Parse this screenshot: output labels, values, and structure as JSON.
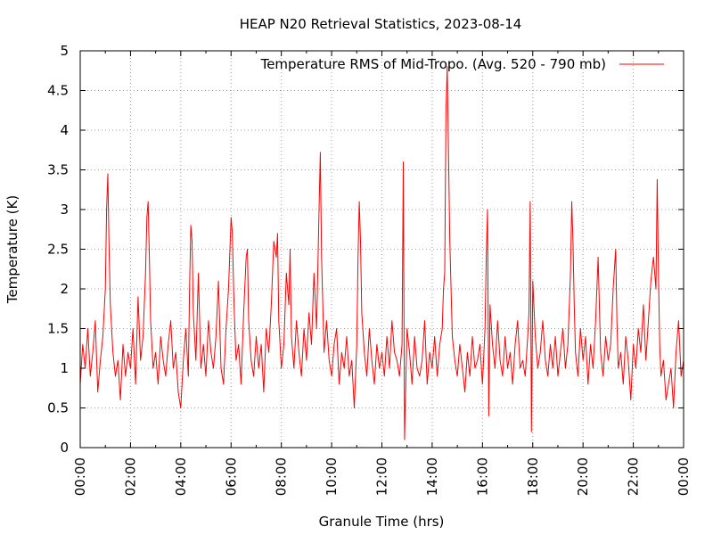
{
  "chart_data": {
    "type": "line",
    "title": "HEAP N20 Retrieval Statistics, 2023-08-14",
    "xlabel": "Granule Time (hrs)",
    "ylabel": "Temperature (K)",
    "xlim": [
      0,
      24
    ],
    "ylim": [
      0,
      5
    ],
    "x_ticks": [
      "00:00",
      "02:00",
      "04:00",
      "06:00",
      "08:00",
      "10:00",
      "12:00",
      "14:00",
      "16:00",
      "18:00",
      "20:00",
      "22:00",
      "00:00"
    ],
    "y_ticks": [
      "0",
      "0.5",
      "1",
      "1.5",
      "2",
      "2.5",
      "3",
      "3.5",
      "4",
      "4.5",
      "5"
    ],
    "grid": true,
    "legend_position": "top-right",
    "series": [
      {
        "name": "Temperature RMS of Mid-Tropo. (Avg. 520 - 790 mb)",
        "color": "#ff0000",
        "x": [
          0.0,
          0.1,
          0.2,
          0.3,
          0.4,
          0.5,
          0.6,
          0.7,
          0.8,
          0.9,
          1.0,
          1.05,
          1.1,
          1.15,
          1.2,
          1.3,
          1.4,
          1.5,
          1.6,
          1.7,
          1.8,
          1.9,
          2.0,
          2.1,
          2.2,
          2.3,
          2.4,
          2.5,
          2.6,
          2.65,
          2.7,
          2.75,
          2.8,
          2.9,
          3.0,
          3.1,
          3.2,
          3.3,
          3.4,
          3.5,
          3.6,
          3.7,
          3.8,
          3.9,
          4.0,
          4.1,
          4.2,
          4.3,
          4.35,
          4.4,
          4.45,
          4.5,
          4.6,
          4.7,
          4.8,
          4.9,
          5.0,
          5.1,
          5.2,
          5.3,
          5.4,
          5.5,
          5.6,
          5.7,
          5.8,
          5.9,
          6.0,
          6.05,
          6.1,
          6.15,
          6.2,
          6.3,
          6.4,
          6.5,
          6.6,
          6.65,
          6.7,
          6.8,
          6.9,
          7.0,
          7.1,
          7.2,
          7.3,
          7.4,
          7.5,
          7.6,
          7.7,
          7.8,
          7.85,
          7.9,
          8.0,
          8.1,
          8.2,
          8.3,
          8.35,
          8.4,
          8.5,
          8.6,
          8.7,
          8.8,
          8.9,
          9.0,
          9.1,
          9.2,
          9.3,
          9.4,
          9.5,
          9.55,
          9.6,
          9.7,
          9.8,
          9.9,
          10.0,
          10.1,
          10.2,
          10.3,
          10.4,
          10.5,
          10.6,
          10.7,
          10.8,
          10.9,
          11.0,
          11.05,
          11.1,
          11.15,
          11.2,
          11.3,
          11.4,
          11.5,
          11.6,
          11.7,
          11.8,
          11.9,
          12.0,
          12.1,
          12.2,
          12.3,
          12.4,
          12.5,
          12.6,
          12.7,
          12.8,
          12.85,
          12.9,
          13.0,
          13.1,
          13.2,
          13.3,
          13.4,
          13.5,
          13.6,
          13.7,
          13.8,
          13.9,
          14.0,
          14.1,
          14.2,
          14.3,
          14.4,
          14.45,
          14.5,
          14.55,
          14.6,
          14.7,
          14.8,
          14.9,
          15.0,
          15.1,
          15.2,
          15.3,
          15.4,
          15.5,
          15.6,
          15.7,
          15.8,
          15.9,
          16.0,
          16.1,
          16.15,
          16.2,
          16.25,
          16.3,
          16.4,
          16.5,
          16.6,
          16.7,
          16.8,
          16.9,
          17.0,
          17.1,
          17.2,
          17.3,
          17.4,
          17.5,
          17.6,
          17.7,
          17.8,
          17.85,
          17.9,
          17.95,
          18.0,
          18.1,
          18.2,
          18.3,
          18.4,
          18.5,
          18.6,
          18.7,
          18.8,
          18.9,
          19.0,
          19.1,
          19.2,
          19.3,
          19.4,
          19.5,
          19.55,
          19.6,
          19.65,
          19.7,
          19.8,
          19.9,
          20.0,
          20.1,
          20.2,
          20.3,
          20.4,
          20.5,
          20.6,
          20.7,
          20.8,
          20.9,
          21.0,
          21.1,
          21.2,
          21.3,
          21.35,
          21.4,
          21.5,
          21.6,
          21.7,
          21.8,
          21.9,
          22.0,
          22.1,
          22.2,
          22.3,
          22.4,
          22.5,
          22.6,
          22.7,
          22.8,
          22.9,
          22.95,
          23.0,
          23.05,
          23.1,
          23.2,
          23.3,
          23.4,
          23.5,
          23.6,
          23.7,
          23.8,
          23.9,
          24.0
        ],
        "y": [
          0.8,
          1.3,
          1.0,
          1.5,
          0.9,
          1.2,
          1.6,
          0.7,
          1.1,
          1.4,
          2.0,
          3.0,
          3.45,
          2.5,
          1.8,
          1.2,
          0.9,
          1.1,
          0.6,
          1.3,
          0.9,
          1.2,
          1.0,
          1.5,
          0.8,
          1.9,
          1.1,
          1.4,
          2.2,
          2.9,
          3.1,
          2.4,
          1.6,
          1.0,
          1.2,
          0.8,
          1.4,
          1.1,
          0.9,
          1.3,
          1.6,
          1.0,
          1.2,
          0.7,
          0.5,
          1.1,
          1.5,
          0.9,
          2.0,
          2.8,
          2.6,
          1.7,
          1.1,
          2.2,
          1.0,
          1.3,
          0.9,
          1.6,
          1.2,
          1.0,
          1.4,
          2.1,
          1.0,
          0.8,
          1.5,
          2.0,
          2.9,
          2.7,
          2.0,
          1.5,
          1.1,
          1.3,
          0.8,
          1.7,
          2.4,
          2.5,
          1.6,
          1.1,
          0.9,
          1.4,
          1.0,
          1.3,
          0.7,
          1.5,
          1.2,
          1.8,
          2.6,
          2.4,
          2.7,
          1.6,
          1.0,
          1.3,
          2.2,
          1.8,
          2.5,
          1.4,
          1.0,
          1.6,
          1.2,
          0.9,
          1.5,
          1.1,
          1.7,
          1.3,
          2.2,
          1.5,
          3.0,
          3.72,
          2.4,
          1.2,
          1.6,
          1.1,
          0.9,
          1.3,
          1.5,
          0.8,
          1.2,
          1.0,
          1.4,
          0.9,
          1.1,
          0.5,
          1.3,
          2.4,
          3.1,
          2.6,
          1.7,
          1.2,
          0.9,
          1.5,
          1.1,
          0.8,
          1.3,
          1.0,
          1.2,
          0.9,
          1.4,
          1.0,
          1.6,
          1.2,
          1.1,
          0.9,
          1.3,
          3.6,
          0.1,
          1.5,
          1.2,
          0.8,
          1.4,
          1.0,
          0.9,
          1.1,
          1.6,
          0.8,
          1.2,
          1.0,
          1.4,
          0.9,
          1.3,
          1.5,
          2.0,
          2.2,
          4.25,
          4.8,
          2.6,
          1.4,
          1.1,
          0.9,
          1.3,
          1.0,
          0.7,
          1.2,
          0.9,
          1.4,
          1.0,
          1.1,
          1.3,
          0.8,
          1.5,
          2.4,
          3.0,
          0.4,
          1.8,
          1.3,
          1.0,
          1.6,
          1.1,
          0.9,
          1.4,
          1.0,
          1.2,
          0.8,
          1.3,
          1.6,
          1.0,
          1.1,
          0.9,
          1.4,
          1.7,
          3.1,
          0.2,
          2.1,
          1.4,
          1.0,
          1.2,
          1.6,
          1.1,
          0.9,
          1.3,
          1.0,
          1.4,
          0.9,
          1.2,
          1.5,
          1.0,
          1.3,
          2.2,
          3.1,
          2.6,
          1.8,
          1.2,
          0.9,
          1.5,
          1.1,
          1.4,
          0.8,
          1.3,
          1.0,
          1.6,
          2.4,
          1.2,
          0.9,
          1.4,
          1.1,
          1.3,
          2.0,
          2.5,
          1.6,
          1.0,
          1.2,
          0.8,
          1.4,
          1.1,
          0.6,
          1.3,
          1.0,
          1.5,
          1.2,
          1.8,
          1.1,
          1.6,
          2.1,
          2.4,
          2.0,
          3.38,
          2.2,
          1.3,
          0.9,
          1.1,
          0.6,
          0.8,
          1.0,
          0.5,
          1.2,
          1.6,
          0.9,
          1.1
        ]
      }
    ]
  }
}
